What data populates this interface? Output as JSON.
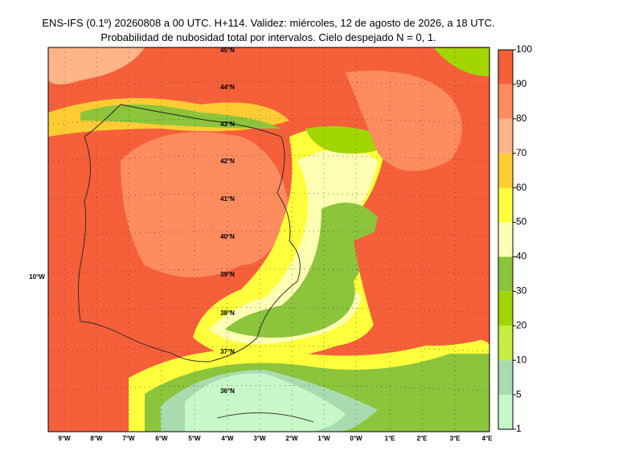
{
  "header": {
    "title_line1": "ENS-IFS (0.1º) 20260808 a 00 UTC. H+114. Validez: miércoles, 12 de agosto de 2026, a 18 UTC.",
    "title_line2": "Probabilidad de nubosidad total por intervalos. Cielo despejado N = 0, 1."
  },
  "map": {
    "lat_labels": [
      "45°N",
      "44°N",
      "43°N",
      "42°N",
      "41°N",
      "40°N",
      "39°N",
      "38°N",
      "37°N",
      "36°N"
    ],
    "lon_labels": [
      "9°W",
      "8°W",
      "7°W",
      "6°W",
      "5°W",
      "4°W",
      "3°W",
      "2°W",
      "1°W",
      "0°W",
      "1°E",
      "2°E",
      "3°E",
      "4°E"
    ],
    "side_label": "10°W"
  },
  "colorbar": {
    "ticks": [
      1,
      5,
      10,
      20,
      30,
      40,
      50,
      60,
      70,
      80,
      90,
      100
    ],
    "colors": [
      "#c8f8c8",
      "#a8dcb0",
      "#c6f040",
      "#a2d600",
      "#8cc43c",
      "#ffffb4",
      "#ffff3c",
      "#ffcc33",
      "#ffb488",
      "#ff8c5e",
      "#f5603a"
    ]
  }
}
